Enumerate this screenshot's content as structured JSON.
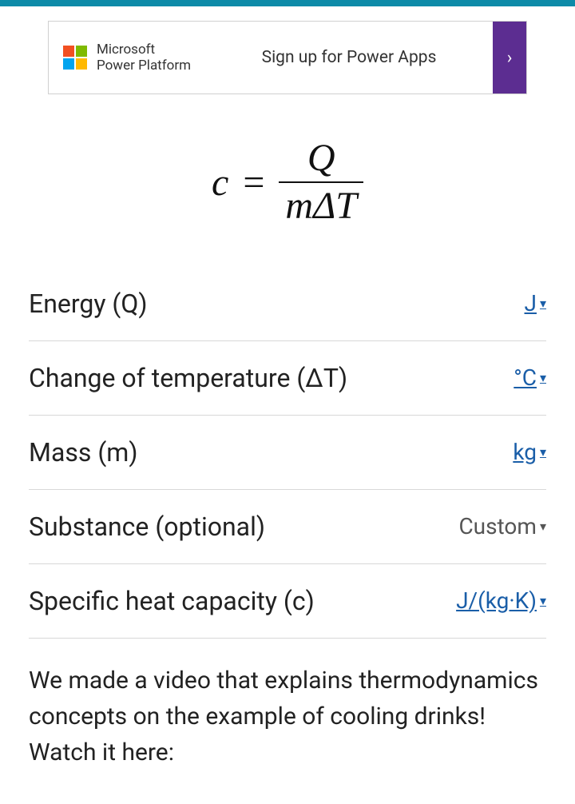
{
  "ad": {
    "brand_line1": "Microsoft",
    "brand_line2": "Power Platform",
    "cta_text": "Sign up for Power Apps",
    "arrow": "›"
  },
  "formula": {
    "lhs": "c",
    "eq": "=",
    "numerator": "Q",
    "denominator": "mΔT"
  },
  "fields": [
    {
      "label": "Energy (Q)",
      "unit": "J",
      "link": true
    },
    {
      "label": "Change of temperature (ΔT)",
      "unit": "°C",
      "link": true
    },
    {
      "label": "Mass (m)",
      "unit": "kg",
      "link": true
    },
    {
      "label": "Substance (optional)",
      "unit": "Custom",
      "link": false
    },
    {
      "label": "Specific heat capacity (c)",
      "unit": "J/(kg·K)",
      "link": true
    }
  ],
  "description": "We made a video that explains thermodynamics concepts on the example of cooling drinks! Watch it here:",
  "caret": "▾"
}
